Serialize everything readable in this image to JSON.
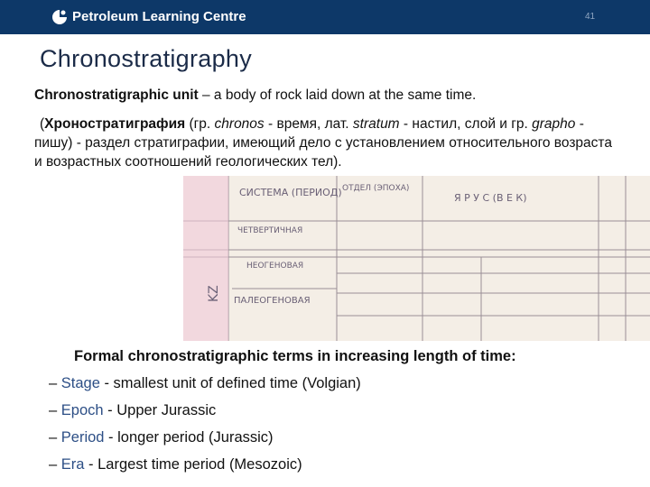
{
  "header": {
    "brand": "Petroleum Learning Centre",
    "page_number": "41"
  },
  "title": "Chronostratigraphy",
  "definition": {
    "term": "Chronostratigraphic unit",
    "text": " – a body of rock laid down at the same time."
  },
  "russian": {
    "segments": [
      "(",
      "Хроностратиграфия",
      " (гр. ",
      "chronos",
      " - время, лат. ",
      "stratum",
      " - настил, слой и гр. ",
      "grapho",
      " - пишу) - раздел стратиграфии, имеющий дело с установлением относительного возраста и возрастных соотношений геологических тел)."
    ]
  },
  "figure": {
    "headers": [
      "СИСТЕМА (ПЕРИОД)",
      "ОТДЕЛ (ЭПОХА)",
      "Я Р У С   (В Е К)"
    ],
    "rows": [
      "ЧЕТВЕРТИЧНАЯ",
      "НЕОГЕНОВАЯ",
      "ПАЛЕОГЕНОВАЯ"
    ],
    "side": "KZ"
  },
  "list": {
    "heading": "Formal chronostratigraphic terms in increasing length of time:",
    "items": [
      {
        "dash": "– ",
        "term": "Stage",
        "text": " - smallest unit of defined time (Volgian)"
      },
      {
        "dash": "– ",
        "term": "Epoch",
        "text": " - Upper Jurassic"
      },
      {
        "dash": "– ",
        "term": "Period",
        "text": " - longer period (Jurassic)"
      },
      {
        "dash": "– ",
        "term": "Era",
        "text": " - Largest time period (Mesozoic)"
      }
    ]
  }
}
